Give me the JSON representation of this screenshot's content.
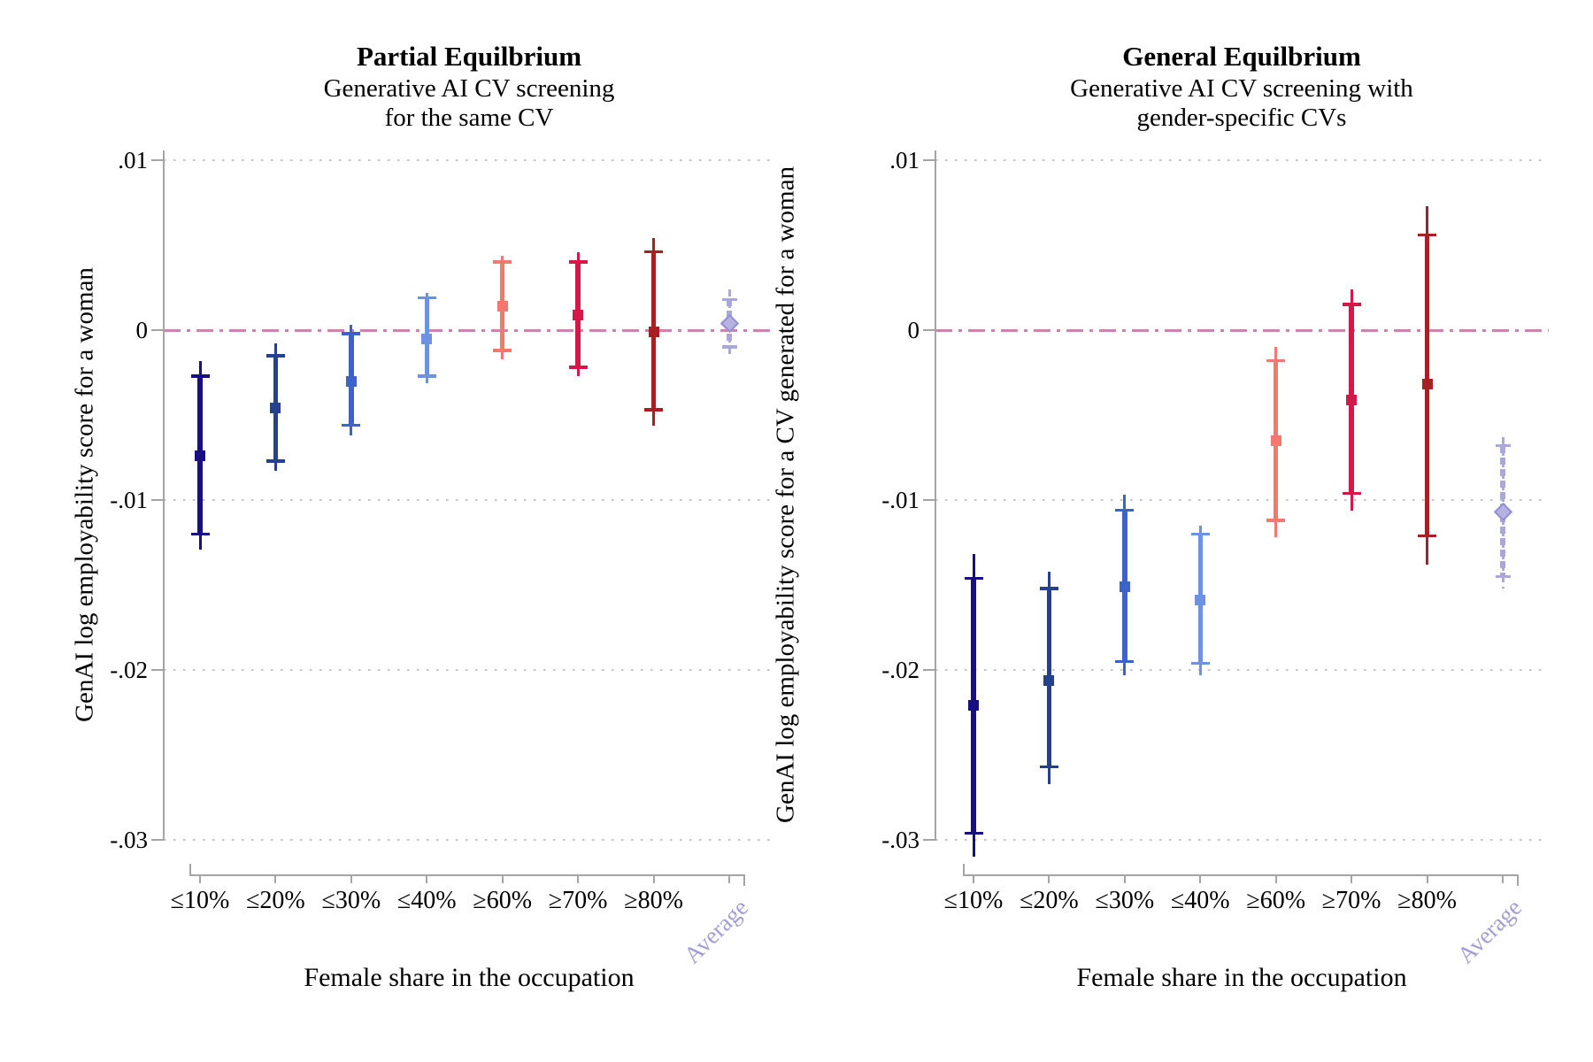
{
  "chart_data": {
    "type": "errorbar",
    "x_categories": [
      "≤10%",
      "≤20%",
      "≤30%",
      "≤40%",
      "≥60%",
      "≥70%",
      "≥80%",
      "Average"
    ],
    "x_axis_title": "Female share in the occupation",
    "y_axis": {
      "tick_labels": [
        ".01",
        "0",
        "-.01",
        "-.02",
        "-.03"
      ],
      "tick_values": [
        0.01,
        0,
        -0.01,
        -0.02,
        -0.03
      ],
      "ylim": [
        -0.031,
        0.011
      ],
      "zero_reference_line": true,
      "grid": "dotted"
    },
    "colors": {
      "zero_line": "#cf82b0",
      "gridline": "#c3c3c3",
      "axis": "#a4a4a4",
      "average_label": "#a19dd6",
      "text": "#000000"
    },
    "panels": [
      {
        "title": "Partial Equilbrium",
        "subtitle_lines": [
          "Generative AI CV screening",
          "for the same CV"
        ],
        "y_axis_label": "GenAI log employability score for a woman",
        "series": [
          {
            "label": "≤10%",
            "marker": "square",
            "color": "#170f82",
            "estimate": -0.0074,
            "inner": [
              -0.012,
              -0.0027
            ],
            "outer": [
              -0.0129,
              -0.0018
            ]
          },
          {
            "label": "≤20%",
            "marker": "square",
            "color": "#24408f",
            "estimate": -0.0046,
            "inner": [
              -0.0077,
              -0.0015
            ],
            "outer": [
              -0.0083,
              -0.0008
            ]
          },
          {
            "label": "≤30%",
            "marker": "square",
            "color": "#3c63c8",
            "estimate": -0.003,
            "inner": [
              -0.0056,
              -0.0002
            ],
            "outer": [
              -0.0062,
              0.0003
            ]
          },
          {
            "label": "≤40%",
            "marker": "square",
            "color": "#6d92e2",
            "estimate": -0.0005,
            "inner": [
              -0.0027,
              0.0019
            ],
            "outer": [
              -0.0031,
              0.0022
            ]
          },
          {
            "label": "≥60%",
            "marker": "square",
            "color": "#f5786f",
            "estimate": 0.0014,
            "inner": [
              -0.0012,
              0.004
            ],
            "outer": [
              -0.0017,
              0.0044
            ]
          },
          {
            "label": "≥70%",
            "marker": "square",
            "color": "#d41949",
            "estimate": 0.0009,
            "inner": [
              -0.0022,
              0.004
            ],
            "outer": [
              -0.0027,
              0.0046
            ]
          },
          {
            "label": "≥80%",
            "marker": "square",
            "color": "#a92023",
            "estimate": -0.0001,
            "inner": [
              -0.0047,
              0.0046
            ],
            "outer": [
              -0.0056,
              0.0054
            ]
          },
          {
            "label": "Average",
            "marker": "diamond",
            "color": "#aaa7dc",
            "estimate": 0.0004,
            "inner": [
              -0.001,
              0.0018
            ],
            "outer": [
              -0.0014,
              0.0024
            ],
            "dashed": true
          }
        ]
      },
      {
        "title": "General Equilbrium",
        "subtitle_lines": [
          "Generative AI CV screening with",
          "gender-specific CVs"
        ],
        "y_axis_label": "GenAI log employability score for a CV generated for a woman",
        "series": [
          {
            "label": "≤10%",
            "marker": "square",
            "color": "#170f82",
            "estimate": -0.0221,
            "inner": [
              -0.0296,
              -0.0146
            ],
            "outer": [
              -0.031,
              -0.0132
            ]
          },
          {
            "label": "≤20%",
            "marker": "square",
            "color": "#24408f",
            "estimate": -0.0206,
            "inner": [
              -0.0257,
              -0.0152
            ],
            "outer": [
              -0.0267,
              -0.0142
            ]
          },
          {
            "label": "≤30%",
            "marker": "square",
            "color": "#3c63c8",
            "estimate": -0.0151,
            "inner": [
              -0.0195,
              -0.0106
            ],
            "outer": [
              -0.0203,
              -0.0097
            ]
          },
          {
            "label": "≤40%",
            "marker": "square",
            "color": "#6d92e2",
            "estimate": -0.0159,
            "inner": [
              -0.0196,
              -0.012
            ],
            "outer": [
              -0.0203,
              -0.0115
            ]
          },
          {
            "label": "≥60%",
            "marker": "square",
            "color": "#f5786f",
            "estimate": -0.0065,
            "inner": [
              -0.0112,
              -0.0018
            ],
            "outer": [
              -0.0122,
              -0.001
            ]
          },
          {
            "label": "≥70%",
            "marker": "square",
            "color": "#d41949",
            "estimate": -0.0041,
            "inner": [
              -0.0096,
              0.0015
            ],
            "outer": [
              -0.0106,
              0.0024
            ]
          },
          {
            "label": "≥80%",
            "marker": "square",
            "color": "#a92023",
            "estimate": -0.0032,
            "inner": [
              -0.0121,
              0.0056
            ],
            "outer": [
              -0.0138,
              0.0073
            ]
          },
          {
            "label": "Average",
            "marker": "diamond",
            "color": "#aaa7dc",
            "estimate": -0.0107,
            "inner": [
              -0.0145,
              -0.0068
            ],
            "outer": [
              -0.0152,
              -0.0063
            ],
            "dashed": true
          }
        ]
      }
    ]
  }
}
